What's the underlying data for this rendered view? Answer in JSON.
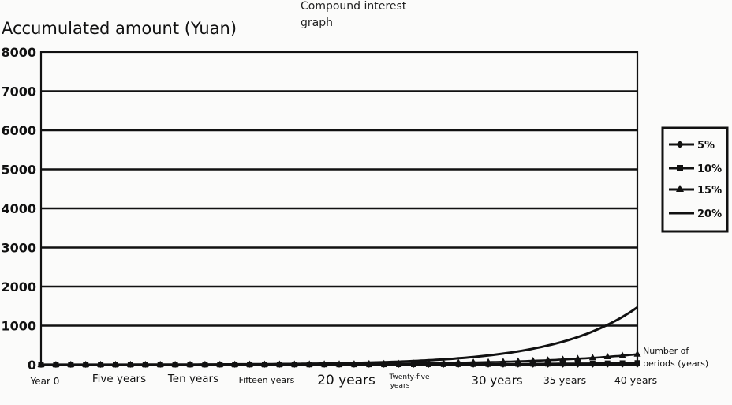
{
  "chart_data": {
    "type": "line",
    "title": "Compound interest graph",
    "ylabel": "Accumulated amount (Yuan)",
    "xlabel": "Number of periods (years)",
    "ylim": [
      0,
      8000
    ],
    "yticks": [
      0,
      1000,
      2000,
      3000,
      4000,
      5000,
      6000,
      7000,
      8000
    ],
    "ytick_labels": [
      "0",
      "1000",
      "2000",
      "3000",
      "4000",
      "5000",
      "6000",
      "7000",
      "8000"
    ],
    "xlim": [
      0,
      40
    ],
    "xticks": [
      0,
      5,
      10,
      15,
      20,
      25,
      30,
      35,
      40
    ],
    "xtick_labels": [
      "Year 0",
      "Five years",
      "Ten years",
      "Fifteen years",
      "20 years",
      "Twenty-five years",
      "30 years",
      "35 years",
      "40 years"
    ],
    "grid": true,
    "legend_position": "right",
    "series": [
      {
        "name": "5%",
        "marker": "diamond",
        "x": [
          0,
          5,
          10,
          15,
          20,
          25,
          30,
          35,
          40
        ],
        "values": [
          1,
          1.28,
          1.63,
          2.08,
          2.65,
          3.39,
          4.32,
          5.52,
          7.04
        ]
      },
      {
        "name": "10%",
        "marker": "square",
        "x": [
          0,
          5,
          10,
          15,
          20,
          25,
          30,
          35,
          40
        ],
        "values": [
          1,
          1.61,
          2.59,
          4.18,
          6.73,
          10.83,
          17.45,
          28.1,
          45.26
        ]
      },
      {
        "name": "15%",
        "marker": "triangle",
        "x": [
          0,
          5,
          10,
          15,
          20,
          25,
          30,
          35,
          40
        ],
        "values": [
          1,
          2.01,
          4.05,
          8.14,
          16.37,
          32.92,
          66.21,
          133.18,
          267.86
        ]
      },
      {
        "name": "20%",
        "marker": "none",
        "x": [
          0,
          5,
          10,
          15,
          20,
          25,
          30,
          35,
          40
        ],
        "values": [
          1,
          2.49,
          6.19,
          15.41,
          38.34,
          95.4,
          237.38,
          590.67,
          1469.77
        ]
      }
    ]
  },
  "colors": {
    "line": "#111111",
    "grid": "#111111",
    "background": "#fbfbfa"
  }
}
